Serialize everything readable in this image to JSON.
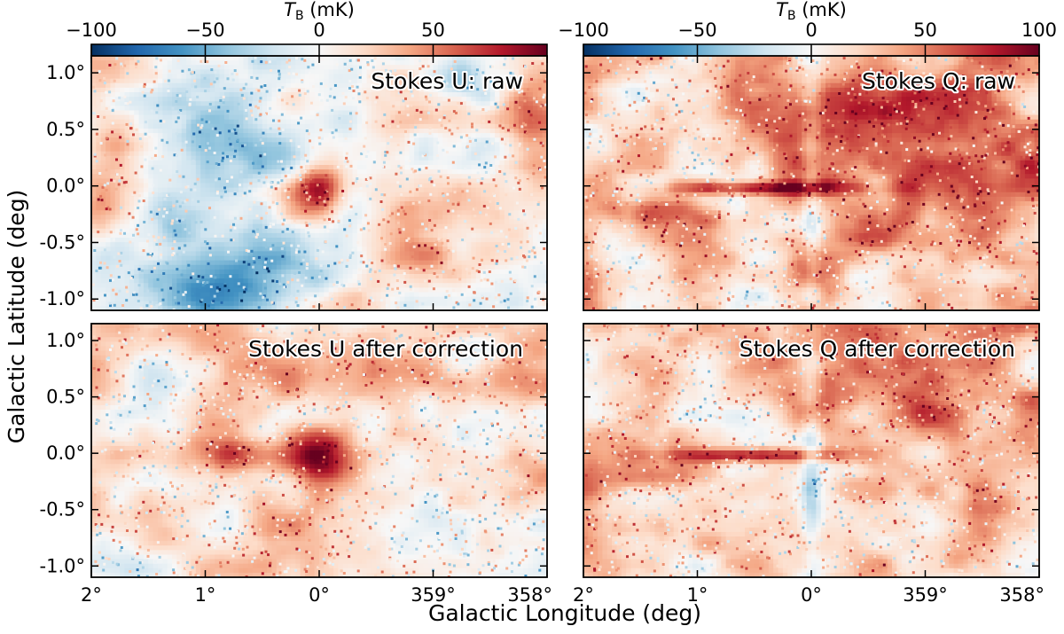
{
  "chart_data": {
    "type": "heatmap",
    "xlabel": "Galactic Longitude (deg)",
    "ylabel": "Galactic Latitude (deg)",
    "x_ticks": [
      "2°",
      "1°",
      "0°",
      "359°",
      "358°"
    ],
    "y_ticks": [
      "1.0°",
      "0.5°",
      "0.0°",
      "-0.5°",
      "-1.0°"
    ],
    "xlim": [
      2,
      -2
    ],
    "ylim": [
      -1.1,
      1.15
    ],
    "colorbar": {
      "title_symbol": "T",
      "title_sub": "B",
      "title_unit": " (mK)",
      "colormap": "RdBu_r",
      "range": [
        -100,
        100
      ],
      "ticks_left": [
        "−100",
        "−50",
        "0",
        "50"
      ],
      "ticks_right": [
        "−100",
        "−50",
        "0",
        "50",
        "100"
      ]
    },
    "panels": [
      {
        "id": "u-raw",
        "label": "Stokes U: raw"
      },
      {
        "id": "q-raw",
        "label": "Stokes Q: raw"
      },
      {
        "id": "u-corrected",
        "label": "Stokes U after correction"
      },
      {
        "id": "q-corrected",
        "label": "Stokes Q after correction"
      }
    ]
  }
}
